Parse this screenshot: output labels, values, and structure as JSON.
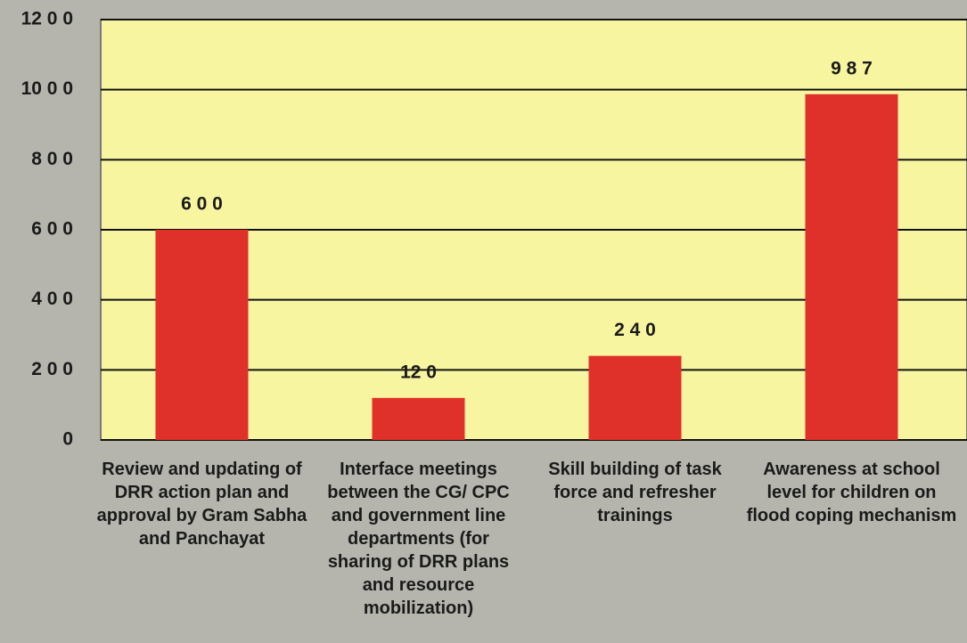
{
  "chart_data": {
    "type": "bar",
    "categories": [
      "Review and updating of DRR action plan and approval by Gram Sabha and Panchayat",
      "Interface meetings between the CG/ CPC and government line departments (for sharing of DRR plans and resource mobilization)",
      "Skill building of task force and refresher trainings",
      "Awareness at school level for children on flood coping mechanism"
    ],
    "values": [
      600,
      120,
      240,
      987
    ],
    "value_labels": [
      "6 0 0",
      "12 0",
      "2 4 0",
      "9 8 7"
    ],
    "color": "#e0302a",
    "ylim": [
      0,
      1200
    ],
    "yticks": [
      0,
      {
        "value": 200,
        "label": "2 0 0"
      },
      {
        "value": 400,
        "label": "4 0 0"
      },
      {
        "value": 600,
        "label": "6 0 0"
      },
      {
        "value": 800,
        "label": "8 0 0"
      },
      {
        "value": 1000,
        "label": "10 0 0"
      },
      {
        "value": 1200,
        "label": "12 0 0"
      }
    ],
    "grid": true
  }
}
